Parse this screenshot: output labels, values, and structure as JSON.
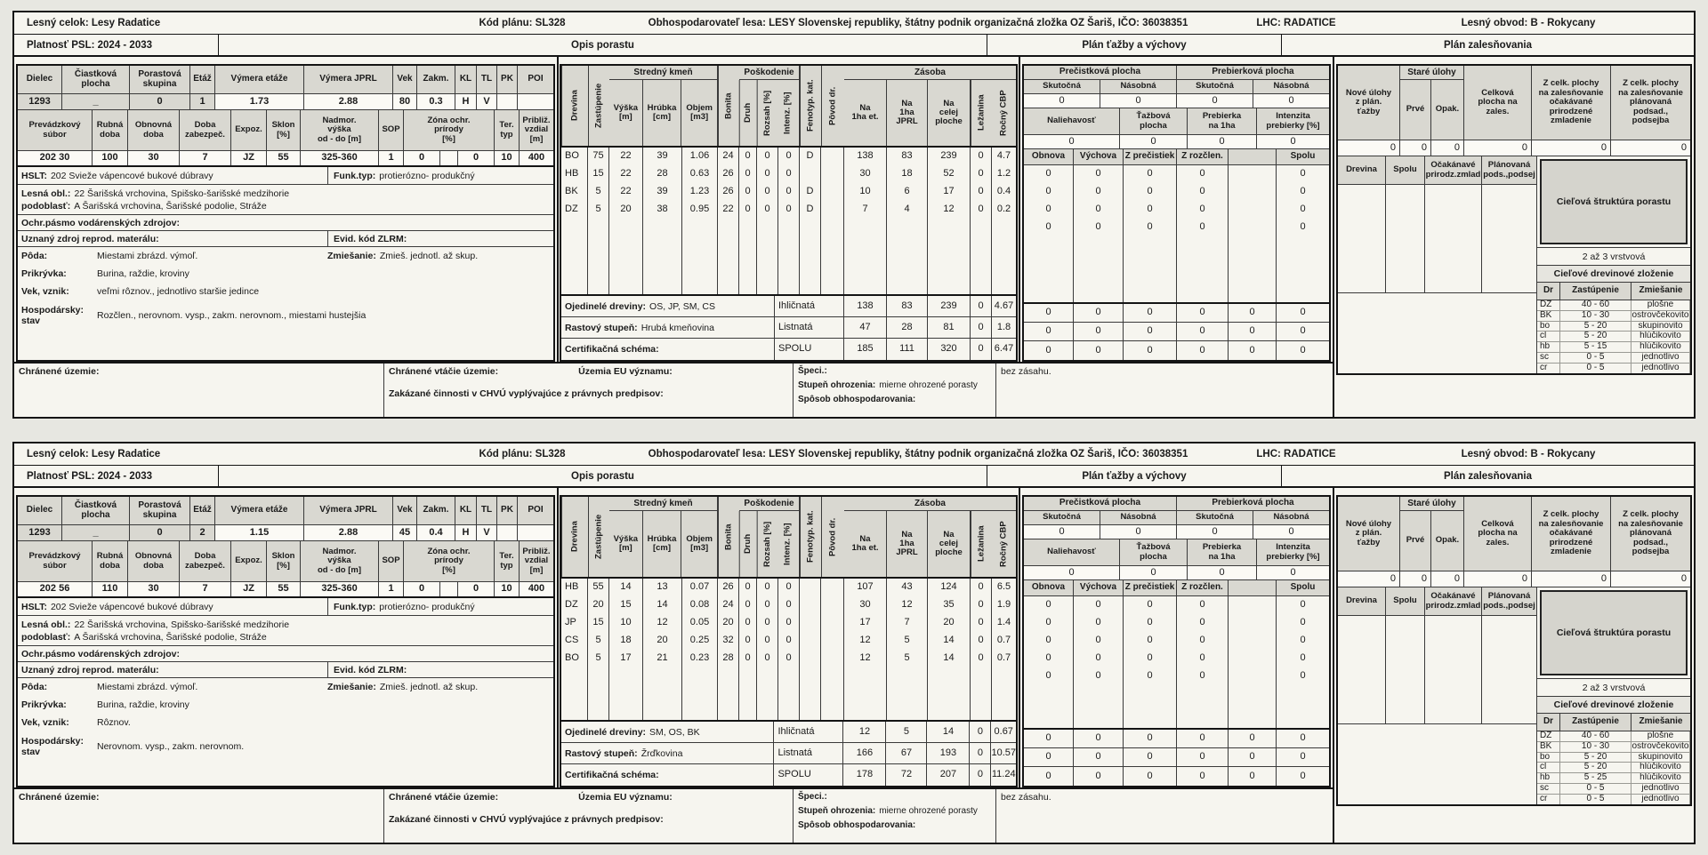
{
  "colors": {
    "page_bg": "#e7e7e1",
    "panel_bg": "#f6f5ef",
    "header_cell_bg": "#d9d8d1",
    "target_box_bg": "#d5d4cd",
    "border": "#141414"
  },
  "labels": {
    "top": {
      "lesny_celok": "Lesný celok: Lesy Radatice",
      "kod_planu": "Kód plánu: SL328",
      "obhosp": "Obhospodarovateľ lesa: LESY Slovenskej republiky, štátny podnik organizačná zložka OZ Šariš, IČO: 36038351",
      "lhc": "LHC: RADATICE",
      "obvod": "Lesný obvod: B - Rokycany",
      "platnost": "Platnosť PSL: 2024 - 2033",
      "opis": "Opis porastu",
      "plan": "Plán ťažby a výchovy",
      "zales": "Plán zalesňovania"
    },
    "tableA": [
      "Dielec",
      "Čiastková\nplocha",
      "Porastová\nskupina",
      "Etáž",
      "Výmera etáže",
      "Výmera JPRL",
      "Vek",
      "Zakm.",
      "KL",
      "TL",
      "PK",
      "POI"
    ],
    "tableB": [
      "Prevádzkový\nsúbor",
      "Rubná\ndoba",
      "Obnovná\ndoba",
      "Doba\nzabezpeč.",
      "Expoz.",
      "Sklon\n[%]",
      "Nadmor.\nvýška\nod - do [m]",
      "SOP",
      "Zóna ochr.\nprírody\n[%]",
      "Ter.\ntyp",
      "Približ.\nvzdial\n[m]"
    ],
    "left": {
      "hslt": "HSLT:",
      "funk": "Funk.typ:",
      "lesna": "Lesná obl.:",
      "podoblast": "podoblasť:",
      "ochr": "Ochr.pásmo vodárenských zdrojov:",
      "uznany": "Uznaný zdroj reprod. materálu:",
      "evid": "Evid. kód ZLRM:",
      "poda": "Pôda:",
      "zmiesanie": "Zmiešanie:",
      "prikryvka": "Prikrývka:",
      "vek_vznik": "Vek, vznik:",
      "hosp1": "Hospodársky:",
      "hosp2": "stav"
    },
    "species": {
      "g1": "Stredný kmeň",
      "g2": "Poškodenie",
      "g3": "Zásoba",
      "cols": [
        "Drevina",
        "Zastúpenie",
        "Výška\n[m]",
        "Hrúbka\n[cm]",
        "Objem\n[m3]",
        "Bonita",
        "Druh",
        "Rozsah [%]",
        "Intenz. [%]",
        "Fenotyp. kat.",
        "Pôvod dr.",
        "Na\n1ha et.",
        "Na\n1ha\nJPRL",
        "Na\ncelej\nploche",
        "Ležanina",
        "Ročný CBP"
      ]
    },
    "sum": [
      "Ojedinelé dreviny:",
      "Rastový stupeň:",
      "Certifikačná schéma:"
    ],
    "plan": {
      "g1": "Prečistková plocha",
      "g2": "Prebierková plocha",
      "sub": [
        "Skutočná",
        "Násobná",
        "Skutočná",
        "Násobná"
      ],
      "head2": [
        "Naliehavosť",
        "Ťažbová\nplocha",
        "Prebierka\nna 1ha",
        "Intenzita\nprebierky [%]"
      ],
      "obnova_head": [
        "Obnova",
        "Výchova",
        "Z prečistiek",
        "Z rozčlen.",
        "",
        "Spolu"
      ],
      "bez": "bez zásahu."
    },
    "zales": {
      "nove": "Nové úlohy\nz plán.\nťažby",
      "stare": "Staré úlohy",
      "prve": "Prvé",
      "opak": "Opak.",
      "celkova": "Celková\nplocha na\nzales.",
      "ocak": "Z celk. plochy\nna zalesňovanie\nočakávané\nprirodzené\nzmladenie",
      "plan_pods": "Z celk. plochy\nna zalesňovanie\nplánovaná\npodsad.,\npodsejba",
      "sub": [
        "Drevina",
        "Spolu",
        "Očakánavé\nprirodz.zmlad",
        "Plánovaná\npods.,podsej"
      ],
      "ciel_box": "Cieľová štruktúra porastu",
      "vrstva": "2 až 3 vrstvová",
      "zlozenie": "Cieľové drevinové zloženie",
      "ciel_head": [
        "Dr",
        "Zastúpenie",
        "Zmiešanie"
      ]
    },
    "bottom": {
      "chranene": "Chránené územie:",
      "vtacie": "Chránené vtáčie územie:",
      "eu": "Územia EU významu:",
      "zakazane": "Zakázané činnosti v CHVÚ vyplývajúce z právnych predpisov:",
      "speci": "Špeci.:",
      "stupen_b": "Stupeň ohrozenia:",
      "stupen_v": "mierne ohrozené porasty",
      "sposob": "Spôsob obhospodarovania:"
    }
  },
  "panels": [
    {
      "tableA_values": [
        "1293",
        "_",
        "0",
        "1",
        "1.73",
        "2.88",
        "80",
        "0.3",
        "H",
        "V",
        "",
        ""
      ],
      "tableB_values": [
        "202 30",
        "100",
        "30",
        "7",
        "JZ",
        "55",
        "325-360",
        "1",
        "0",
        "",
        "0",
        "10",
        "400"
      ],
      "left": {
        "hslt": "202 Svieže vápencové bukové dúbravy",
        "funk": "protierózno- produkčný",
        "lesna": "22 Šarišská vrchovina, Spišsko-šarišské medzihorie",
        "podoblast": "A Šarišská vrchovina, Šarišské podolie, Stráže",
        "poda": "Miestami zbrázd. výmoľ.",
        "zmiesanie": "Zmieš. jednotl. až skup.",
        "prikryvka": "Burina, raždie, kroviny",
        "vek_vznik": "veľmi rôznov., jednotlivo staršie jedince",
        "hospodarsky": "Rozčlen., nerovnom. vysp., zakm. nerovnom., miestami hustejšia"
      },
      "species_rows": [
        [
          "BO",
          "75",
          "22",
          "39",
          "1.06",
          "24",
          "0",
          "0",
          "0",
          "D",
          "",
          "138",
          "83",
          "239",
          "0",
          "4.7"
        ],
        [
          "HB",
          "15",
          "22",
          "28",
          "0.63",
          "26",
          "0",
          "0",
          "0",
          "",
          "",
          "30",
          "18",
          "52",
          "0",
          "1.2"
        ],
        [
          "BK",
          "5",
          "22",
          "39",
          "1.23",
          "26",
          "0",
          "0",
          "0",
          "D",
          "",
          "10",
          "6",
          "17",
          "0",
          "0.4"
        ],
        [
          "DZ",
          "5",
          "20",
          "38",
          "0.95",
          "22",
          "0",
          "0",
          "0",
          "D",
          "",
          "7",
          "4",
          "12",
          "0",
          "0.2"
        ]
      ],
      "summary": {
        "ojedinele": "OS, JP, SM, CS",
        "rastovy": "Hrubá kmeňovina",
        "cert": "",
        "rows": [
          [
            "Ihličnatá",
            "138",
            "83",
            "239",
            "0",
            "4.67"
          ],
          [
            "Listnatá",
            "47",
            "28",
            "81",
            "0",
            "1.8"
          ],
          [
            "SPOLU",
            "185",
            "111",
            "320",
            "0",
            "6.47"
          ]
        ]
      },
      "plan": {
        "zeros1": [
          "0",
          "0",
          "0",
          "0"
        ],
        "zeros2": [
          "0",
          "0",
          "0",
          "0"
        ],
        "obnova_rows": [
          [
            "0",
            "0",
            "0",
            "0",
            "",
            "0"
          ],
          [
            "0",
            "0",
            "0",
            "0",
            "",
            "0"
          ],
          [
            "0",
            "0",
            "0",
            "0",
            "",
            "0"
          ],
          [
            "0",
            "0",
            "0",
            "0",
            "",
            "0"
          ]
        ],
        "lower_rows": [
          [
            "0",
            "0",
            "0",
            "0",
            "0",
            "0"
          ],
          [
            "0",
            "0",
            "0",
            "0",
            "0",
            "0"
          ],
          [
            "0",
            "0",
            "0",
            "0",
            "0",
            "0"
          ]
        ]
      },
      "zales_zeros": [
        "0",
        "0",
        "0",
        "0",
        "0",
        "0"
      ],
      "ciel_rows": [
        [
          "DZ",
          "40 - 60",
          "plošne"
        ],
        [
          "BK",
          "10 - 30",
          "ostrovčekovito"
        ],
        [
          "bo",
          "5 - 20",
          "skupinovito"
        ],
        [
          "cl",
          "5 - 20",
          "hlúčikovito"
        ],
        [
          "hb",
          "5 - 15",
          "hlúčikovito"
        ],
        [
          "sc",
          "0 - 5",
          "jednotlivo"
        ],
        [
          "cr",
          "0 - 5",
          "jednotlivo"
        ]
      ]
    },
    {
      "tableA_values": [
        "1293",
        "_",
        "0",
        "2",
        "1.15",
        "2.88",
        "45",
        "0.4",
        "H",
        "V",
        "",
        ""
      ],
      "tableB_values": [
        "202 56",
        "110",
        "30",
        "7",
        "JZ",
        "55",
        "325-360",
        "1",
        "0",
        "",
        "0",
        "10",
        "400"
      ],
      "left": {
        "hslt": "202 Svieže vápencové bukové dúbravy",
        "funk": "protierózno- produkčný",
        "lesna": "22 Šarišská vrchovina, Spišsko-šarišské medzihorie",
        "podoblast": "A Šarišská vrchovina, Šarišské podolie, Stráže",
        "poda": "Miestami zbrázd. výmoľ.",
        "zmiesanie": "Zmieš. jednotl. až skup.",
        "prikryvka": "Burina, raždie, kroviny",
        "vek_vznik": "Rôznov.",
        "hospodarsky": "Nerovnom. vysp., zakm. nerovnom."
      },
      "species_rows": [
        [
          "HB",
          "55",
          "14",
          "13",
          "0.07",
          "26",
          "0",
          "0",
          "0",
          "",
          "",
          "107",
          "43",
          "124",
          "0",
          "6.5"
        ],
        [
          "DZ",
          "20",
          "15",
          "14",
          "0.08",
          "24",
          "0",
          "0",
          "0",
          "",
          "",
          "30",
          "12",
          "35",
          "0",
          "1.9"
        ],
        [
          "JP",
          "15",
          "10",
          "12",
          "0.05",
          "20",
          "0",
          "0",
          "0",
          "",
          "",
          "17",
          "7",
          "20",
          "0",
          "1.4"
        ],
        [
          "CS",
          "5",
          "18",
          "20",
          "0.25",
          "32",
          "0",
          "0",
          "0",
          "",
          "",
          "12",
          "5",
          "14",
          "0",
          "0.7"
        ],
        [
          "BO",
          "5",
          "17",
          "21",
          "0.23",
          "28",
          "0",
          "0",
          "0",
          "",
          "",
          "12",
          "5",
          "14",
          "0",
          "0.7"
        ]
      ],
      "summary": {
        "ojedinele": "SM, OS, BK",
        "rastovy": "Žrďkovina",
        "cert": "",
        "rows": [
          [
            "Ihličnatá",
            "12",
            "5",
            "14",
            "0",
            "0.67"
          ],
          [
            "Listnatá",
            "166",
            "67",
            "193",
            "0",
            "10.57"
          ],
          [
            "SPOLU",
            "178",
            "72",
            "207",
            "0",
            "11.24"
          ]
        ]
      },
      "plan": {
        "zeros1": [
          "0",
          "0",
          "0",
          "0"
        ],
        "zeros2": [
          "0",
          "0",
          "0",
          "0"
        ],
        "obnova_rows": [
          [
            "0",
            "0",
            "0",
            "0",
            "",
            "0"
          ],
          [
            "0",
            "0",
            "0",
            "0",
            "",
            "0"
          ],
          [
            "0",
            "0",
            "0",
            "0",
            "",
            "0"
          ],
          [
            "0",
            "0",
            "0",
            "0",
            "",
            "0"
          ],
          [
            "0",
            "0",
            "0",
            "0",
            "",
            "0"
          ]
        ],
        "lower_rows": [
          [
            "0",
            "0",
            "0",
            "0",
            "0",
            "0"
          ],
          [
            "0",
            "0",
            "0",
            "0",
            "0",
            "0"
          ],
          [
            "0",
            "0",
            "0",
            "0",
            "0",
            "0"
          ]
        ]
      },
      "zales_zeros": [
        "0",
        "0",
        "0",
        "0",
        "0",
        "0"
      ],
      "ciel_rows": [
        [
          "DZ",
          "40 - 60",
          "plošne"
        ],
        [
          "BK",
          "10 - 30",
          "ostrovčekovito"
        ],
        [
          "bo",
          "5 - 20",
          "skupinovito"
        ],
        [
          "cl",
          "5 - 20",
          "hlúčikovito"
        ],
        [
          "hb",
          "5 - 25",
          "hlúčikovito"
        ],
        [
          "sc",
          "0 - 5",
          "jednotlivo"
        ],
        [
          "cr",
          "0 - 5",
          "jednotlivo"
        ]
      ]
    }
  ]
}
